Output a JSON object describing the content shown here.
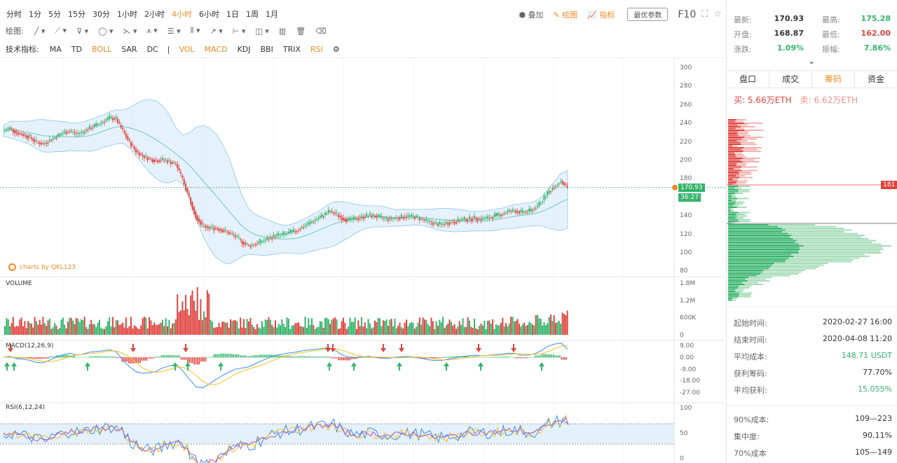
{
  "periods": {
    "items": [
      "分时",
      "1分",
      "5分",
      "15分",
      "30分",
      "1小时",
      "2小时",
      "4小时",
      "6小时",
      "1日",
      "1周",
      "1月"
    ],
    "active": "4小时"
  },
  "toolbar": {
    "overlay_label": "叠加",
    "draw_label": "绘图",
    "indicator_label": "指标",
    "optimize_label": "最优参数",
    "f10_label": "F10"
  },
  "draw_tools": {
    "label": "绘图:",
    "icons": [
      "line-tool-icon",
      "ray-tool-icon",
      "channel-tool-icon",
      "circle-tool-icon",
      "wave-tool-icon",
      "pattern-tool-icon",
      "fib-tool-icon",
      "gann-tool-icon",
      "arrow-tool-icon",
      "measure-tool-icon",
      "note-tool-icon",
      "bar-tool-icon",
      "trash-icon",
      "erase-icon"
    ]
  },
  "indicators": {
    "label": "技术指标:",
    "main": [
      {
        "name": "MA",
        "on": false
      },
      {
        "name": "TD",
        "on": false
      },
      {
        "name": "BOLL",
        "on": true
      },
      {
        "name": "SAR",
        "on": false
      },
      {
        "name": "DC",
        "on": false
      }
    ],
    "sub": [
      {
        "name": "VOL",
        "on": true
      },
      {
        "name": "MACD",
        "on": true
      },
      {
        "name": "KDJ",
        "on": false
      },
      {
        "name": "BBI",
        "on": false
      },
      {
        "name": "TRIX",
        "on": false
      },
      {
        "name": "RSI",
        "on": true
      }
    ]
  },
  "chart_data": {
    "type": "candlestick",
    "watermark": "charts by QKL123",
    "price_axis": [
      "300",
      "280",
      "260",
      "240",
      "220",
      "200",
      "180",
      "160",
      "140",
      "120",
      "100",
      "80"
    ],
    "last_price": "170.93",
    "countdown": "36:27",
    "colors": {
      "up": "#35b36b",
      "down": "#e0443f",
      "boll_band": "#cfe6f7",
      "boll_mid": "#6ccbbe"
    },
    "volume": {
      "title": "VOLUME",
      "axis": [
        "1.8M",
        "1.2M",
        "600K",
        "0"
      ]
    },
    "macd": {
      "title": "MACD(12,26,9)",
      "axis": [
        "9.00",
        "0.00",
        "-9.00",
        "-18.00",
        "-27.00"
      ]
    },
    "rsi": {
      "title": "RSI(6,12,24)",
      "axis": [
        "100",
        "50",
        "0"
      ]
    },
    "price_series": [
      232,
      235,
      230,
      228,
      225,
      220,
      218,
      222,
      226,
      230,
      232,
      229,
      231,
      235,
      238,
      242,
      246,
      245,
      232,
      220,
      210,
      205,
      202,
      200,
      201,
      199,
      196,
      180,
      160,
      140,
      130,
      128,
      127,
      125,
      122,
      118,
      112,
      108,
      110,
      113,
      116,
      119,
      120,
      122,
      124,
      128,
      132,
      136,
      140,
      145,
      143,
      138,
      136,
      137,
      139,
      141,
      140,
      138,
      137,
      138,
      139,
      140,
      139,
      137,
      134,
      132,
      131,
      133,
      134,
      136,
      137,
      138,
      137,
      138,
      140,
      142,
      145,
      146,
      144,
      145,
      148,
      155,
      165,
      172,
      178,
      171
    ]
  },
  "quote": {
    "latest_k": "最新:",
    "latest_v": "170.93",
    "high_k": "最高:",
    "high_v": "175.28",
    "open_k": "开盘:",
    "open_v": "168.87",
    "low_k": "最低:",
    "low_v": "162.00",
    "change_k": "涨跌:",
    "change_v": "1.09%",
    "amp_k": "振幅:",
    "amp_v": "7.86%"
  },
  "tabs": [
    {
      "label": "盘口",
      "active": false
    },
    {
      "label": "成交",
      "active": false
    },
    {
      "label": "筹码",
      "active": true
    },
    {
      "label": "资金",
      "active": false
    }
  ],
  "buysell": {
    "buy": "买: 5.66万ETH",
    "sell": "卖: 6.62万ETH"
  },
  "chip_level": "181",
  "info": [
    {
      "k": "起始时间:",
      "v": "2020-02-27 16:00",
      "c": ""
    },
    {
      "k": "结束时间:",
      "v": "2020-04-08 11:20",
      "c": ""
    },
    {
      "k": "平均成本:",
      "v": "148.71 USDT",
      "c": "green"
    },
    {
      "k": "获利筹码:",
      "v": "77.70%",
      "c": ""
    },
    {
      "k": "平均获利:",
      "v": "15.055%",
      "c": "green"
    }
  ],
  "info2": [
    {
      "k": "90%成本:",
      "v": "109—223"
    },
    {
      "k": "集中度:",
      "v": "90.11%"
    },
    {
      "k": "70%成本",
      "v": "105—149"
    }
  ]
}
